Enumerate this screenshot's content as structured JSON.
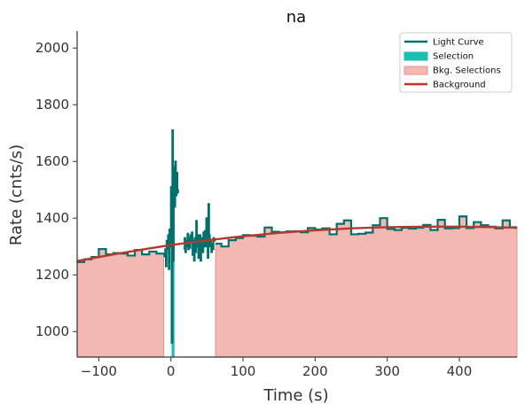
{
  "chart_data": {
    "type": "line",
    "title": "na",
    "xlabel": "Time (s)",
    "ylabel": "Rate (cnts/s)",
    "xlim": [
      -130,
      480
    ],
    "ylim": [
      910,
      2060
    ],
    "x_ticks": [
      -100,
      0,
      100,
      200,
      300,
      400
    ],
    "x_tick_labels": [
      "−100",
      "0",
      "100",
      "200",
      "300",
      "400"
    ],
    "y_ticks": [
      1000,
      1200,
      1400,
      1600,
      1800,
      2000
    ],
    "y_tick_labels": [
      "1000",
      "1200",
      "1400",
      "1600",
      "1800",
      "2000"
    ],
    "legend_position": "top-right",
    "grid": false,
    "legend": [
      {
        "label": "Light Curve",
        "kind": "line",
        "color": "#00706b"
      },
      {
        "label": "Selection",
        "kind": "patch",
        "color": "#1bbfb2"
      },
      {
        "label": "Bkg. Selections",
        "kind": "patch",
        "color": "#f4b8b3"
      },
      {
        "label": "Background",
        "kind": "line",
        "color": "#b5392c"
      }
    ],
    "bkg_selections": [
      [
        -130,
        -20
      ],
      [
        62,
        480
      ]
    ],
    "selection": [
      1,
      5
    ],
    "background_poly": [
      [
        -130,
        1249
      ],
      [
        -80,
        1272
      ],
      [
        -40,
        1289
      ],
      [
        0,
        1305
      ],
      [
        50,
        1322
      ],
      [
        100,
        1336
      ],
      [
        150,
        1348
      ],
      [
        200,
        1357
      ],
      [
        250,
        1364
      ],
      [
        300,
        1368
      ],
      [
        350,
        1370
      ],
      [
        400,
        1370
      ],
      [
        450,
        1368
      ],
      [
        480,
        1366
      ]
    ],
    "light_curve_low": {
      "edges": [
        -130,
        -120,
        -110,
        -100,
        -90,
        -80,
        -70,
        -60,
        -50,
        -40,
        -30,
        -20,
        -10
      ],
      "values": [
        1245,
        1255,
        1263,
        1291,
        1272,
        1277,
        1275,
        1268,
        1288,
        1272,
        1282,
        1275
      ]
    },
    "light_curve_fine": [
      [
        -10,
        1275
      ],
      [
        -9,
        1265
      ],
      [
        -8,
        1290
      ],
      [
        -7,
        1230
      ],
      [
        -6,
        1320
      ],
      [
        -5,
        1290
      ],
      [
        -4,
        1340
      ],
      [
        -3,
        1220
      ],
      [
        -2,
        1360
      ],
      [
        -1,
        1300
      ],
      [
        0,
        1510
      ],
      [
        1,
        960
      ],
      [
        2,
        1710
      ],
      [
        3,
        1250
      ],
      [
        4,
        1580
      ],
      [
        5,
        1440
      ],
      [
        6,
        1600
      ],
      [
        7,
        1480
      ],
      [
        8,
        1560
      ],
      [
        9,
        1490
      ],
      [
        10,
        1500
      ],
      [
        18,
        1290
      ],
      [
        19,
        1330
      ],
      [
        20,
        1280
      ],
      [
        21,
        1320
      ],
      [
        22,
        1300
      ],
      [
        23,
        1345
      ],
      [
        24,
        1290
      ],
      [
        25,
        1330
      ],
      [
        26,
        1295
      ],
      [
        27,
        1340
      ],
      [
        28,
        1320
      ],
      [
        29,
        1350
      ],
      [
        30,
        1270
      ],
      [
        31,
        1320
      ],
      [
        32,
        1250
      ],
      [
        33,
        1330
      ],
      [
        34,
        1280
      ],
      [
        35,
        1390
      ],
      [
        36,
        1300
      ],
      [
        37,
        1340
      ],
      [
        38,
        1260
      ],
      [
        39,
        1300
      ],
      [
        40,
        1340
      ],
      [
        41,
        1250
      ],
      [
        42,
        1305
      ],
      [
        43,
        1330
      ],
      [
        44,
        1280
      ],
      [
        45,
        1350
      ],
      [
        46,
        1300
      ],
      [
        47,
        1355
      ],
      [
        48,
        1300
      ],
      [
        49,
        1400
      ],
      [
        50,
        1310
      ],
      [
        51,
        1260
      ],
      [
        52,
        1450
      ],
      [
        53,
        1340
      ],
      [
        54,
        1300
      ],
      [
        55,
        1320
      ],
      [
        56,
        1280
      ],
      [
        57,
        1310
      ],
      [
        58,
        1290
      ],
      [
        59,
        1330
      ],
      [
        60,
        1320
      ],
      [
        61,
        1320
      ]
    ],
    "light_curve_high": {
      "edges": [
        62,
        70,
        80,
        90,
        100,
        110,
        120,
        130,
        140,
        150,
        160,
        170,
        180,
        190,
        200,
        210,
        220,
        230,
        240,
        250,
        260,
        270,
        280,
        290,
        300,
        310,
        320,
        330,
        340,
        350,
        360,
        370,
        380,
        390,
        400,
        410,
        420,
        430,
        440,
        450,
        460,
        470,
        480
      ],
      "values": [
        1310,
        1300,
        1322,
        1330,
        1340,
        1338,
        1335,
        1367,
        1352,
        1350,
        1353,
        1354,
        1350,
        1365,
        1360,
        1364,
        1343,
        1380,
        1392,
        1343,
        1345,
        1349,
        1375,
        1400,
        1362,
        1358,
        1366,
        1363,
        1366,
        1376,
        1358,
        1394,
        1364,
        1365,
        1406,
        1365,
        1386,
        1375,
        1370,
        1364,
        1392,
        1368
      ]
    }
  }
}
